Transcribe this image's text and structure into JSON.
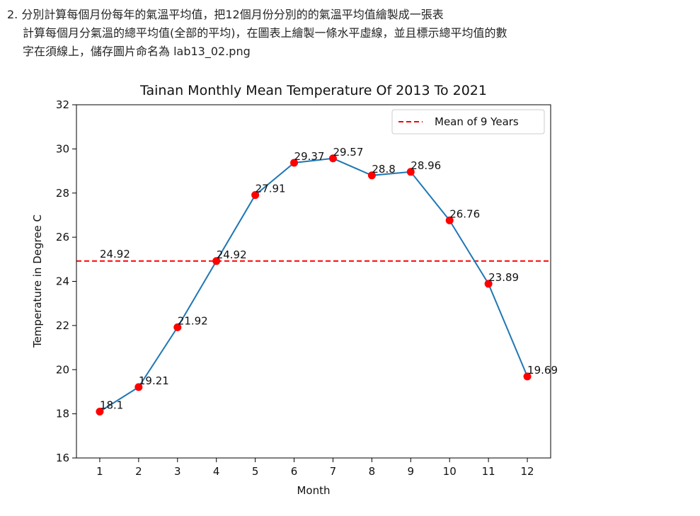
{
  "instructions": {
    "line1": "2. 分別計算每個月份每年的氣溫平均值，把12個月份分別的的氣溫平均值繪製成一張表",
    "line2": "計算每個月分氣溫的總平均值(全部的平均)，在圖表上繪製一條水平虛線，並且標示總平均值的數",
    "line3": "字在須線上，儲存圖片命名為 lab13_02.png"
  },
  "chart_data": {
    "type": "line",
    "title": "Tainan Monthly Mean Temperature Of 2013 To 2021",
    "xlabel": "Month",
    "ylabel": "Temperature in Degree C",
    "x": [
      1,
      2,
      3,
      4,
      5,
      6,
      7,
      8,
      9,
      10,
      11,
      12
    ],
    "series": [
      {
        "values": [
          18.1,
          19.21,
          21.92,
          24.92,
          27.91,
          29.37,
          29.57,
          28.8,
          28.96,
          26.76,
          23.89,
          19.69
        ],
        "color": "#1f77b4",
        "marker_color": "#ff0000"
      }
    ],
    "mean_line": {
      "value": 24.92,
      "label": "24.92",
      "legend_label": "Mean of 9 Years",
      "color": "#ff0000",
      "style": "dashed"
    },
    "xlim": [
      0.4,
      12.6
    ],
    "ylim": [
      16,
      32
    ],
    "xticks": [
      "1",
      "2",
      "3",
      "4",
      "5",
      "6",
      "7",
      "8",
      "9",
      "10",
      "11",
      "12"
    ],
    "yticks": [
      "16",
      "18",
      "20",
      "22",
      "24",
      "26",
      "28",
      "30",
      "32"
    ],
    "grid": false,
    "legend_position": "top-right"
  }
}
